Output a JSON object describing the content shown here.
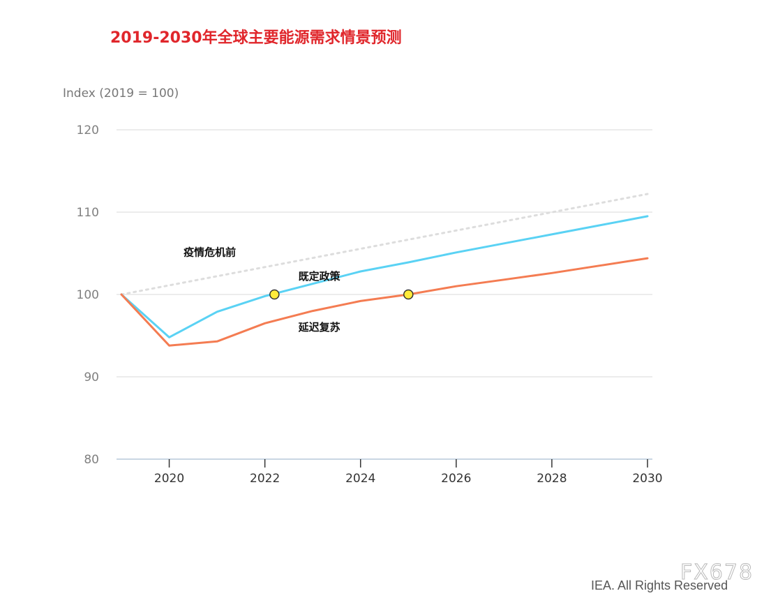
{
  "title": "2019-2030年全球主要能源需求情景预测",
  "chart_data": {
    "type": "line",
    "title": "2019-2030年全球主要能源需求情景预测",
    "ylabel": "Index (2019 = 100)",
    "xlabel": "",
    "xlim": [
      2019,
      2030
    ],
    "ylim": [
      80,
      120
    ],
    "yticks": [
      80,
      90,
      100,
      110,
      120
    ],
    "xticks": [
      2020,
      2022,
      2024,
      2026,
      2028,
      2030
    ],
    "grid": true,
    "series": [
      {
        "name": "疫情危机前",
        "color": "#dddddd",
        "style": "dotted",
        "x": [
          2019,
          2030
        ],
        "values": [
          100,
          112.2
        ]
      },
      {
        "name": "既定政策",
        "color": "#5ad2f4",
        "style": "solid",
        "x": [
          2019,
          2020,
          2021,
          2022,
          2023,
          2024,
          2025,
          2026,
          2027,
          2028,
          2029,
          2030
        ],
        "values": [
          100,
          94.8,
          97.9,
          99.8,
          101.3,
          102.8,
          103.9,
          105.1,
          106.2,
          107.3,
          108.4,
          109.5
        ]
      },
      {
        "name": "延迟复苏",
        "color": "#f47c52",
        "style": "solid",
        "x": [
          2019,
          2020,
          2021,
          2022,
          2023,
          2024,
          2025,
          2026,
          2027,
          2028,
          2029,
          2030
        ],
        "values": [
          100,
          93.8,
          94.3,
          96.5,
          98.0,
          99.2,
          100.0,
          101.0,
          101.8,
          102.6,
          103.5,
          104.4
        ]
      }
    ],
    "markers": [
      {
        "x": 2022.2,
        "y": 100,
        "color": "#ffeb3b"
      },
      {
        "x": 2025,
        "y": 100,
        "color": "#ffeb3b"
      }
    ],
    "annotations": [
      {
        "text": "疫情危机前",
        "x": 2020.3,
        "y": 104.7
      },
      {
        "text": "既定政策",
        "x": 2022.7,
        "y": 101.8
      },
      {
        "text": "延迟复苏",
        "x": 2022.7,
        "y": 95.6
      }
    ]
  },
  "credit": "IEA. All Rights Reserved",
  "watermark": "FX678"
}
